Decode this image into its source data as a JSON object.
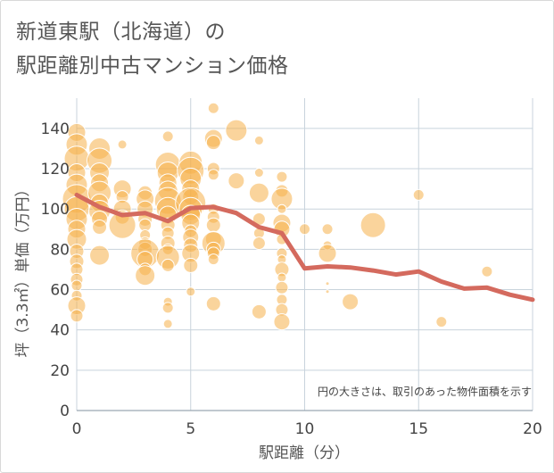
{
  "title_line1": "新道東駅（北海道）の",
  "title_line2": "駅距離別中古マンション価格",
  "colors": {
    "bubble": "#f5b04a",
    "line": "#d46a5e",
    "grid": "#c8d3dc",
    "background": "#ffffff"
  },
  "chart_data": {
    "type": "scatter",
    "xlabel": "駅距離（分）",
    "ylabel": "坪（3.3㎡）単価（万円）",
    "note": "円の大きさは、取引のあった物件面積を示す",
    "xlim": [
      0,
      20
    ],
    "ylim": [
      0,
      155
    ],
    "xticks": [
      0,
      5,
      10,
      15,
      20
    ],
    "yticks": [
      0,
      20,
      40,
      60,
      80,
      100,
      120,
      140
    ],
    "grid": true,
    "series": [
      {
        "type": "bubble",
        "points": [
          [
            0,
            138,
            10
          ],
          [
            0,
            132,
            12
          ],
          [
            0,
            125,
            14
          ],
          [
            0,
            118,
            10
          ],
          [
            0,
            112,
            12
          ],
          [
            0,
            105,
            16
          ],
          [
            0,
            100,
            14
          ],
          [
            0,
            95,
            12
          ],
          [
            0,
            90,
            10
          ],
          [
            0,
            85,
            11
          ],
          [
            0,
            79,
            8
          ],
          [
            0,
            74,
            8
          ],
          [
            0,
            70,
            7
          ],
          [
            0,
            65,
            7
          ],
          [
            0,
            62,
            6
          ],
          [
            0,
            57,
            6
          ],
          [
            0,
            52,
            10
          ],
          [
            0,
            47,
            7
          ],
          [
            1,
            130,
            12
          ],
          [
            1,
            124,
            14
          ],
          [
            1,
            118,
            11
          ],
          [
            1,
            113,
            10
          ],
          [
            1,
            108,
            13
          ],
          [
            1,
            103,
            10
          ],
          [
            1,
            99,
            12
          ],
          [
            1,
            95,
            9
          ],
          [
            1,
            91,
            8
          ],
          [
            1,
            77,
            11
          ],
          [
            2,
            132,
            5
          ],
          [
            2,
            110,
            10
          ],
          [
            2,
            106,
            7
          ],
          [
            2,
            100,
            10
          ],
          [
            2,
            96,
            8
          ],
          [
            2,
            92,
            15
          ],
          [
            3,
            108,
            8
          ],
          [
            3,
            105,
            10
          ],
          [
            3,
            100,
            9
          ],
          [
            3,
            95,
            8
          ],
          [
            3,
            92,
            7
          ],
          [
            3,
            87,
            6
          ],
          [
            3,
            83,
            7
          ],
          [
            3,
            80,
            8
          ],
          [
            3,
            78,
            16
          ],
          [
            3,
            75,
            9
          ],
          [
            3,
            70,
            7
          ],
          [
            3,
            67,
            11
          ],
          [
            4,
            136,
            6
          ],
          [
            4,
            122,
            14
          ],
          [
            4,
            118,
            12
          ],
          [
            4,
            113,
            10
          ],
          [
            4,
            109,
            11
          ],
          [
            4,
            104,
            15
          ],
          [
            4,
            100,
            13
          ],
          [
            4,
            97,
            10
          ],
          [
            4,
            92,
            8
          ],
          [
            4,
            88,
            7
          ],
          [
            4,
            83,
            8
          ],
          [
            4,
            80,
            6
          ],
          [
            4,
            76,
            13
          ],
          [
            4,
            72,
            7
          ],
          [
            4,
            54,
            5
          ],
          [
            4,
            51,
            6
          ],
          [
            4,
            43,
            5
          ],
          [
            5,
            123,
            13
          ],
          [
            5,
            119,
            15
          ],
          [
            5,
            115,
            12
          ],
          [
            5,
            110,
            10
          ],
          [
            5,
            106,
            9
          ],
          [
            5,
            103,
            17
          ],
          [
            5,
            100,
            13
          ],
          [
            5,
            97,
            11
          ],
          [
            5,
            93,
            10
          ],
          [
            5,
            89,
            7
          ],
          [
            5,
            86,
            9
          ],
          [
            5,
            82,
            8
          ],
          [
            5,
            78,
            10
          ],
          [
            5,
            72,
            8
          ],
          [
            5,
            59,
            5
          ],
          [
            6,
            150,
            6
          ],
          [
            6,
            135,
            10
          ],
          [
            6,
            133,
            8
          ],
          [
            6,
            120,
            7
          ],
          [
            6,
            117,
            6
          ],
          [
            6,
            100,
            6
          ],
          [
            6,
            96,
            7
          ],
          [
            6,
            92,
            8
          ],
          [
            6,
            85,
            9
          ],
          [
            6,
            83,
            13
          ],
          [
            6,
            80,
            8
          ],
          [
            6,
            78,
            7
          ],
          [
            6,
            75,
            6
          ],
          [
            6,
            53,
            8
          ],
          [
            7,
            139,
            12
          ],
          [
            7,
            114,
            9
          ],
          [
            8,
            134,
            5
          ],
          [
            8,
            118,
            5
          ],
          [
            8,
            108,
            11
          ],
          [
            8,
            95,
            7
          ],
          [
            8,
            88,
            6
          ],
          [
            8,
            83,
            7
          ],
          [
            8,
            49,
            8
          ],
          [
            9,
            116,
            6
          ],
          [
            9,
            109,
            7
          ],
          [
            9,
            105,
            12
          ],
          [
            9,
            100,
            5
          ],
          [
            9,
            93,
            10
          ],
          [
            9,
            90,
            9
          ],
          [
            9,
            85,
            6
          ],
          [
            9,
            78,
            6
          ],
          [
            9,
            75,
            5
          ],
          [
            9,
            70,
            8
          ],
          [
            9,
            66,
            5
          ],
          [
            9,
            61,
            7
          ],
          [
            9,
            55,
            6
          ],
          [
            9,
            50,
            7
          ],
          [
            9,
            44,
            9
          ],
          [
            10,
            90,
            6
          ],
          [
            11,
            90,
            6
          ],
          [
            11,
            82,
            5
          ],
          [
            11,
            78,
            10
          ],
          [
            11,
            63,
            2
          ],
          [
            11,
            59,
            2
          ],
          [
            12,
            54,
            9
          ],
          [
            13,
            92,
            14
          ],
          [
            15,
            107,
            6
          ],
          [
            16,
            44,
            6
          ],
          [
            18,
            69,
            6
          ]
        ]
      },
      {
        "type": "line",
        "x": [
          0,
          1,
          2,
          3,
          4,
          5,
          6,
          7,
          8,
          9,
          10,
          11,
          12,
          13,
          14,
          15,
          16,
          17,
          18,
          19,
          20
        ],
        "y": [
          107,
          101,
          97,
          98,
          94,
          100.5,
          101,
          98,
          91,
          88,
          70.5,
          71.5,
          71,
          69.5,
          67.5,
          69,
          64,
          60.5,
          61,
          57.5,
          55
        ]
      }
    ]
  }
}
